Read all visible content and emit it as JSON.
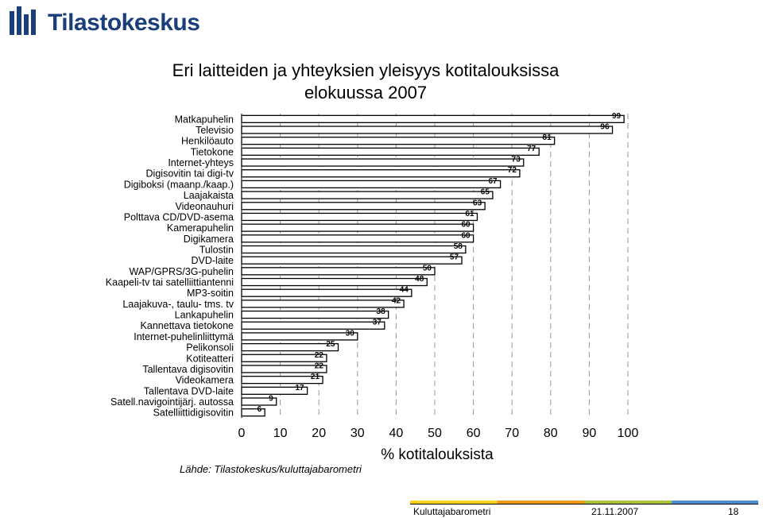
{
  "header": {
    "logo_text": "Tilastokeskus"
  },
  "title_line1": "Eri laitteiden ja yhteyksien yleisyys kotitalouksissa",
  "title_line2": "elokuussa 2007",
  "source": "Lähde: Tilastokeskus/kuluttajabarometri",
  "footer": {
    "name": "Kuluttajabarometri",
    "date": "21.11.2007",
    "page": "18",
    "colors": [
      "#ffd21f",
      "#f39a1b",
      "#a8c43c",
      "#4b8fcf"
    ]
  },
  "chart_data": {
    "type": "bar",
    "orientation": "horizontal",
    "categories": [
      "Matkapuhelin",
      "Televisio",
      "Henkilöauto",
      "Tietokone",
      "Internet-yhteys",
      "Digisovitin tai digi-tv",
      "Digiboksi (maanp./kaap.)",
      "Laajakaista",
      "Videonauhuri",
      "Polttava CD/DVD-asema",
      "Kamerapuhelin",
      "Digikamera",
      "Tulostin",
      "DVD-laite",
      "WAP/GPRS/3G-puhelin",
      "Kaapeli-tv tai satelliittiantenni",
      "MP3-soitin",
      "Laajakuva-, taulu- tms. tv",
      "Lankapuhelin",
      "Kannettava tietokone",
      "Internet-puhelinliittymä",
      "Pelikonsoli",
      "Kotiteatteri",
      "Tallentava digisovitin",
      "Videokamera",
      "Tallentava DVD-laite",
      "Satell.navigointijärj. autossa",
      "Satelliittidigisovitin"
    ],
    "values": [
      99,
      96,
      81,
      77,
      73,
      72,
      67,
      65,
      63,
      61,
      60,
      60,
      58,
      57,
      50,
      48,
      44,
      42,
      38,
      37,
      30,
      25,
      22,
      22,
      21,
      17,
      9,
      6
    ],
    "xlabel": "% kotitalouksista",
    "xlim": [
      0,
      100
    ],
    "xticks": [
      "0",
      "10",
      "20",
      "30",
      "40",
      "50",
      "60",
      "70",
      "80",
      "90",
      "100"
    ],
    "grid": "vertical dashed",
    "bar_color": "#ffffff",
    "edge_color": "#000000"
  }
}
